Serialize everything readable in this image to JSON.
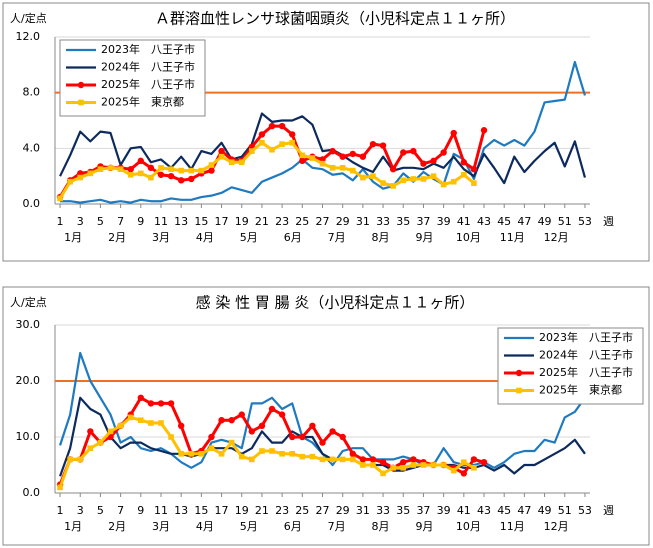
{
  "chart_data": [
    {
      "type": "line",
      "title": "Ａ群溶血性レンサ球菌咽頭炎（小児科定点１１ヶ所）",
      "y_label": "人/定点",
      "x_label": "週",
      "x": [
        1,
        2,
        3,
        4,
        5,
        6,
        7,
        8,
        9,
        10,
        11,
        12,
        13,
        14,
        15,
        16,
        17,
        18,
        19,
        20,
        21,
        22,
        23,
        24,
        25,
        26,
        27,
        28,
        29,
        30,
        31,
        32,
        33,
        34,
        35,
        36,
        37,
        38,
        39,
        40,
        41,
        42,
        43,
        44,
        45,
        46,
        47,
        48,
        49,
        50,
        51,
        52,
        53
      ],
      "xlim": [
        0.5,
        53.5
      ],
      "xticks": [
        1,
        3,
        5,
        7,
        9,
        11,
        13,
        15,
        17,
        19,
        21,
        23,
        25,
        27,
        29,
        31,
        33,
        35,
        37,
        39,
        41,
        43,
        45,
        47,
        49,
        51,
        53
      ],
      "month_labels": [
        "1月",
        "2月",
        "3月",
        "4月",
        "5月",
        "6月",
        "7月",
        "8月",
        "9月",
        "10月",
        "11月",
        "12月"
      ],
      "ylim": [
        0,
        12
      ],
      "yticks": [
        {
          "value": 0,
          "label": "0.0"
        },
        {
          "value": 4,
          "label": "4.0"
        },
        {
          "value": 8,
          "label": "8.0"
        },
        {
          "value": 12,
          "label": "12.0"
        }
      ],
      "grid": true,
      "threshold": 8,
      "threshold_color": "#f07020",
      "legend": "upper left",
      "series": [
        {
          "name": "2023年　八王子市",
          "color": "#1f7ac0",
          "marker": "none",
          "values": [
            0.2,
            0.2,
            0.1,
            0.2,
            0.3,
            0.1,
            0.2,
            0.1,
            0.3,
            0.2,
            0.2,
            0.4,
            0.3,
            0.3,
            0.5,
            0.6,
            0.8,
            1.2,
            1.0,
            0.8,
            1.6,
            1.9,
            2.2,
            2.6,
            3.2,
            2.6,
            2.5,
            2.1,
            2.2,
            1.7,
            2.5,
            1.6,
            1.1,
            1.3,
            2.2,
            1.6,
            2.3,
            1.8,
            1.4,
            3.6,
            3.2,
            1.8,
            4.0,
            4.6,
            4.2,
            4.6,
            4.2,
            5.2,
            7.3,
            7.4,
            7.5,
            10.2,
            7.8
          ]
        },
        {
          "name": "2024年　八王子市",
          "color": "#0d2a5e",
          "marker": "none",
          "values": [
            2.0,
            3.5,
            5.2,
            4.5,
            5.2,
            5.1,
            2.8,
            4.0,
            4.1,
            3.0,
            3.2,
            2.6,
            3.4,
            2.5,
            3.8,
            3.6,
            4.4,
            3.2,
            3.4,
            4.3,
            6.5,
            5.9,
            6.0,
            6.0,
            6.3,
            5.7,
            3.8,
            3.9,
            3.5,
            3.0,
            2.6,
            2.3,
            3.4,
            2.4,
            2.6,
            2.6,
            2.5,
            2.9,
            2.6,
            3.4,
            2.5,
            2.0,
            3.6,
            2.6,
            1.5,
            3.4,
            2.3,
            3.1,
            3.8,
            4.4,
            2.7,
            4.5,
            1.9
          ]
        },
        {
          "name": "2025年　八王子市",
          "color": "#ff0000",
          "marker": "circle",
          "values": [
            0.5,
            1.7,
            2.2,
            2.3,
            2.7,
            2.6,
            2.6,
            2.5,
            3.1,
            2.6,
            2.1,
            2.0,
            1.7,
            1.8,
            2.2,
            2.4,
            3.8,
            3.2,
            3.1,
            4.1,
            5.0,
            5.6,
            5.6,
            5.0,
            3.1,
            3.4,
            3.2,
            3.8,
            3.4,
            3.6,
            3.4,
            4.3,
            4.2,
            2.5,
            3.7,
            3.8,
            2.9,
            3.1,
            3.7,
            5.1,
            3.0,
            2.5,
            5.3,
            null,
            null,
            null,
            null,
            null,
            null,
            null,
            null,
            null,
            null
          ]
        },
        {
          "name": "2025年　東京都",
          "color": "#ffc000",
          "marker": "square",
          "values": [
            0.4,
            1.6,
            1.9,
            2.2,
            2.5,
            2.6,
            2.5,
            2.1,
            2.2,
            1.9,
            2.6,
            2.5,
            2.4,
            2.4,
            2.4,
            2.8,
            3.4,
            3.0,
            3.0,
            3.8,
            4.4,
            3.9,
            4.3,
            4.4,
            3.5,
            3.3,
            2.9,
            2.6,
            2.6,
            2.4,
            1.9,
            2.0,
            1.5,
            1.3,
            1.7,
            1.8,
            1.8,
            2.0,
            1.4,
            1.6,
            2.1,
            1.5,
            null,
            null,
            null,
            null,
            null,
            null,
            null,
            null,
            null,
            null,
            null
          ]
        }
      ]
    },
    {
      "type": "line",
      "title": "感 染 性 胃 腸 炎（小児科定点１１ヶ所）",
      "y_label": "人/定点",
      "x_label": "週",
      "x": [
        1,
        2,
        3,
        4,
        5,
        6,
        7,
        8,
        9,
        10,
        11,
        12,
        13,
        14,
        15,
        16,
        17,
        18,
        19,
        20,
        21,
        22,
        23,
        24,
        25,
        26,
        27,
        28,
        29,
        30,
        31,
        32,
        33,
        34,
        35,
        36,
        37,
        38,
        39,
        40,
        41,
        42,
        43,
        44,
        45,
        46,
        47,
        48,
        49,
        50,
        51,
        52,
        53
      ],
      "xlim": [
        0.5,
        53.5
      ],
      "xticks": [
        1,
        3,
        5,
        7,
        9,
        11,
        13,
        15,
        17,
        19,
        21,
        23,
        25,
        27,
        29,
        31,
        33,
        35,
        37,
        39,
        41,
        43,
        45,
        47,
        49,
        51,
        53
      ],
      "month_labels": [
        "1月",
        "2月",
        "3月",
        "4月",
        "5月",
        "6月",
        "7月",
        "8月",
        "9月",
        "10月",
        "11月",
        "12月"
      ],
      "ylim": [
        0,
        30
      ],
      "yticks": [
        {
          "value": 0,
          "label": "0.0"
        },
        {
          "value": 10,
          "label": "10.0"
        },
        {
          "value": 20,
          "label": "20.0"
        },
        {
          "value": 30,
          "label": "30.0"
        }
      ],
      "grid": true,
      "threshold": 20,
      "threshold_color": "#f07020",
      "legend": "upper right",
      "series": [
        {
          "name": "2023年　八王子市",
          "color": "#1f7ac0",
          "marker": "none",
          "values": [
            8.5,
            14,
            25,
            20,
            17,
            14,
            9,
            10,
            8,
            7.5,
            8,
            7,
            5.5,
            4.5,
            5.5,
            9,
            9.5,
            9,
            8,
            16,
            16,
            17,
            15,
            16,
            10,
            9,
            7,
            5,
            7.5,
            8,
            8,
            6,
            6,
            6,
            6.5,
            6,
            5,
            5,
            8,
            5.5,
            5,
            5,
            5.5,
            4.5,
            5.5,
            7,
            7.5,
            7.5,
            9.5,
            9,
            13.5,
            14.5,
            17
          ]
        },
        {
          "name": "2024年　八王子市",
          "color": "#0d2a5e",
          "marker": "none",
          "values": [
            3,
            8,
            17,
            15,
            14,
            10,
            8,
            9,
            9,
            8,
            7.5,
            7,
            7,
            6.5,
            7,
            8,
            8,
            8,
            7,
            8,
            11,
            9,
            9,
            11,
            10,
            10,
            7,
            6,
            6,
            6,
            5,
            5,
            5,
            4,
            4,
            4.5,
            5,
            5,
            5,
            5,
            4.5,
            4.5,
            5,
            4,
            5,
            3.5,
            5,
            5,
            6,
            7,
            8,
            9.5,
            7
          ]
        },
        {
          "name": "2025年　八王子市",
          "color": "#ff0000",
          "marker": "circle",
          "values": [
            1.5,
            6,
            6,
            11,
            9,
            10,
            12,
            14,
            17,
            16,
            16,
            16,
            12,
            7,
            7.5,
            10,
            13,
            13,
            14,
            11,
            12,
            15,
            14,
            10,
            10,
            12,
            9,
            11,
            10,
            7,
            6,
            6,
            5.5,
            4.5,
            5.5,
            6,
            5.5,
            5,
            5,
            4.5,
            3.5,
            6,
            5.5,
            null,
            null,
            null,
            null,
            null,
            null,
            null,
            null,
            null,
            null
          ]
        },
        {
          "name": "2025年　東京都",
          "color": "#ffc000",
          "marker": "square",
          "values": [
            1,
            6,
            6,
            8,
            9,
            11,
            12,
            13.5,
            13,
            12.5,
            12.5,
            10,
            7,
            7,
            7,
            8,
            7,
            9,
            6.5,
            6,
            7.5,
            7.5,
            7,
            7,
            6.5,
            6.5,
            6,
            6,
            6,
            6,
            5,
            5,
            3.5,
            4.5,
            4.5,
            5,
            5,
            5,
            5,
            4,
            5.5,
            4.5,
            null,
            null,
            null,
            null,
            null,
            null,
            null,
            null,
            null,
            null,
            null
          ]
        }
      ]
    }
  ]
}
